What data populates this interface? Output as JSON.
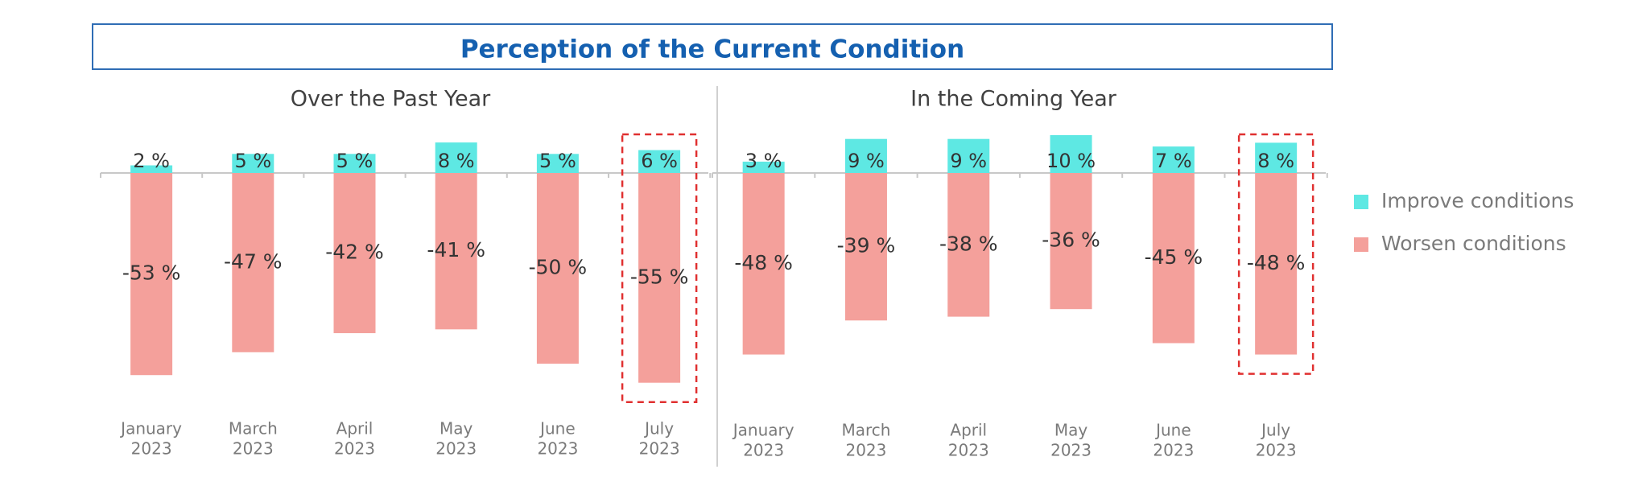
{
  "chart_data": {
    "type": "bar",
    "title": "Perception of the Current Condition",
    "ylim": [
      -60,
      12
    ],
    "legend": {
      "placement": "right",
      "entries": [
        {
          "name": "Improve conditions",
          "color": "#5ee8e3"
        },
        {
          "name": "Worsen conditions",
          "color": "#f4a09b"
        }
      ]
    },
    "highlight_color": "#e03030",
    "panels": [
      {
        "subtitle": "Over the Past Year",
        "categories": [
          {
            "month": "January",
            "year": "2023"
          },
          {
            "month": "March",
            "year": "2023"
          },
          {
            "month": "April",
            "year": "2023"
          },
          {
            "month": "May",
            "year": "2023"
          },
          {
            "month": "June",
            "year": "2023"
          },
          {
            "month": "July",
            "year": "2023"
          }
        ],
        "series": [
          {
            "name": "Improve conditions",
            "values": [
              2,
              5,
              5,
              8,
              5,
              6
            ],
            "labels": [
              "2 %",
              "5 %",
              "5 %",
              "8 %",
              "5 %",
              "6 %"
            ]
          },
          {
            "name": "Worsen conditions",
            "values": [
              -53,
              -47,
              -42,
              -41,
              -50,
              -55
            ],
            "labels": [
              "-53 %",
              "-47 %",
              "-42 %",
              "-41 %",
              "-50 %",
              "-55 %"
            ]
          }
        ],
        "highlighted_index": 5
      },
      {
        "subtitle": "In the Coming Year",
        "categories": [
          {
            "month": "January",
            "year": "2023"
          },
          {
            "month": "March",
            "year": "2023"
          },
          {
            "month": "April",
            "year": "2023"
          },
          {
            "month": "May",
            "year": "2023"
          },
          {
            "month": "June",
            "year": "2023"
          },
          {
            "month": "July",
            "year": "2023"
          }
        ],
        "series": [
          {
            "name": "Improve conditions",
            "values": [
              3,
              9,
              9,
              10,
              7,
              8
            ],
            "labels": [
              "3 %",
              "9 %",
              "9 %",
              "10 %",
              "7 %",
              "8 %"
            ]
          },
          {
            "name": "Worsen conditions",
            "values": [
              -48,
              -39,
              -38,
              -36,
              -45,
              -48
            ],
            "labels": [
              "-48 %",
              "-39 %",
              "-38 %",
              "-36 %",
              "-45 %",
              "-48 %"
            ]
          }
        ],
        "highlighted_index": 5
      }
    ]
  }
}
